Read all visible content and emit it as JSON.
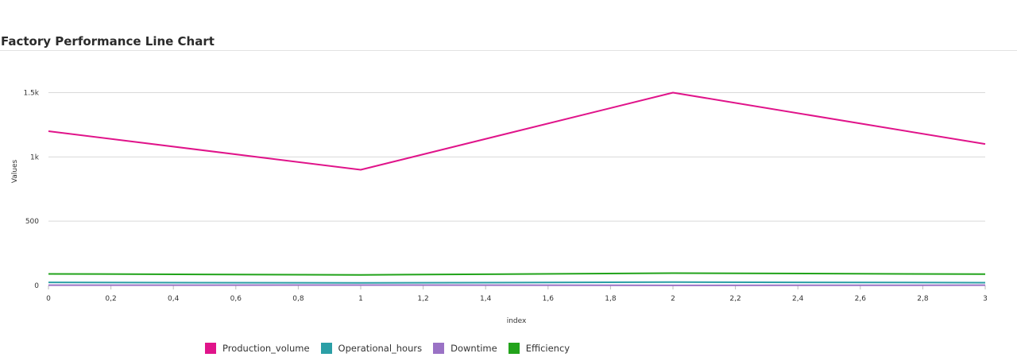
{
  "title": "Factory Performance Line Chart",
  "chart_data": {
    "type": "line",
    "x": [
      0,
      1,
      2,
      3
    ],
    "xlabel": "index",
    "ylabel": "Values",
    "xlim": [
      0,
      3
    ],
    "ylim": [
      0,
      1800
    ],
    "x_ticks": [
      "0",
      "0,2",
      "0,4",
      "0,6",
      "0,8",
      "1",
      "1,2",
      "1,4",
      "1,6",
      "1,8",
      "2",
      "2,2",
      "2,4",
      "2,6",
      "2,8",
      "3"
    ],
    "y_ticks": [
      "0",
      "500",
      "1k",
      "1.5k"
    ],
    "grid": true,
    "legend_position": "bottom",
    "series": [
      {
        "name": "Production_volume",
        "values": [
          1200,
          900,
          1500,
          1100
        ],
        "color": "#e0148a"
      },
      {
        "name": "Operational_hours",
        "values": [
          24,
          20,
          26,
          22
        ],
        "color": "#2b9fa6"
      },
      {
        "name": "Downtime",
        "values": [
          2,
          3,
          1,
          2
        ],
        "color": "#9a72c5"
      },
      {
        "name": "Efficiency",
        "values": [
          90,
          82,
          96,
          88
        ],
        "color": "#22a31b"
      }
    ]
  }
}
